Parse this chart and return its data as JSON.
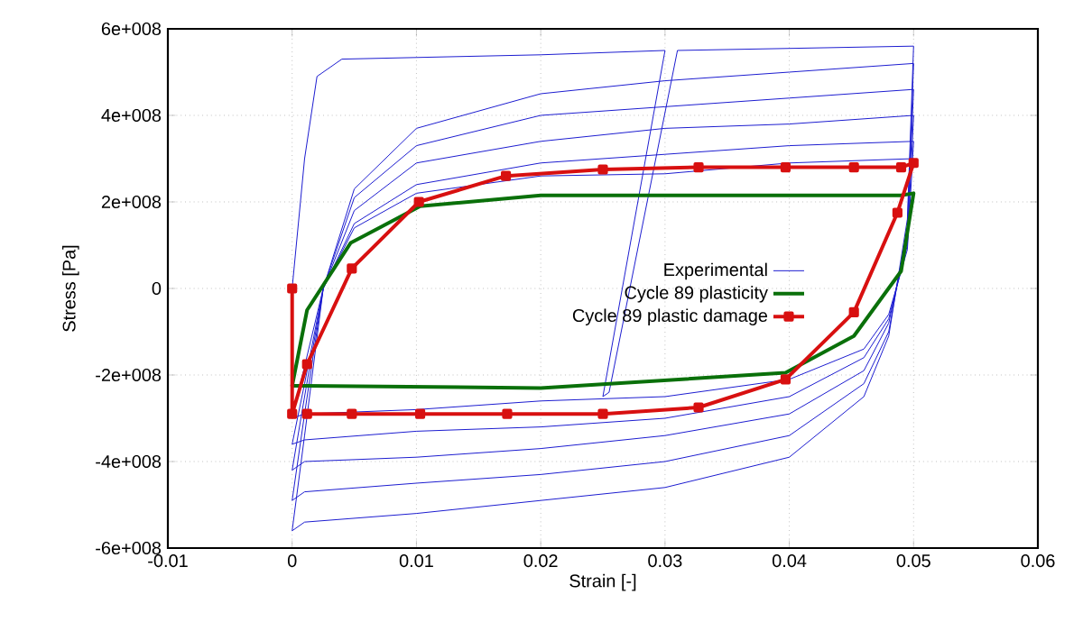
{
  "chart_data": {
    "type": "line",
    "xlabel": "Strain [-]",
    "ylabel": "Stress [Pa]",
    "xlim": [
      -0.01,
      0.06
    ],
    "xticks": [
      -0.01,
      0,
      0.01,
      0.02,
      0.03,
      0.04,
      0.05,
      0.06
    ],
    "ylim": [
      -600000000.0,
      600000000.0
    ],
    "yticks": [
      {
        "value": -600000000.0,
        "label": "-6e+008"
      },
      {
        "value": -400000000.0,
        "label": "-4e+008"
      },
      {
        "value": -200000000.0,
        "label": "-2e+008"
      },
      0,
      {
        "value": 200000000.0,
        "label": "2e+008"
      },
      {
        "value": 400000000.0,
        "label": "4e+008"
      },
      {
        "value": 600000000.0,
        "label": "6e+008"
      }
    ],
    "grid": true,
    "legend": "right",
    "series": [
      {
        "name": "Experimental",
        "color": "#1c1cd0",
        "marker": "none",
        "x": [
          0,
          0.001,
          0.002,
          0.004,
          0.02,
          0.03,
          0.025,
          0.0255,
          0.031,
          0.05,
          0.0495,
          0.048,
          0.046,
          0.04,
          0.03,
          0.02,
          0.01,
          0.001,
          0,
          0.001,
          0.0025,
          0.005,
          0.01,
          0.02,
          0.03,
          0.04,
          0.05,
          0.0495,
          0.048,
          0.046,
          0.04,
          0.03,
          0.02,
          0.01,
          0.001,
          0,
          0.001,
          0.0025,
          0.005,
          0.01,
          0.02,
          0.03,
          0.04,
          0.05,
          0.0495,
          0.048,
          0.046,
          0.04,
          0.03,
          0.02,
          0.01,
          0.001,
          0,
          0.001,
          0.0025,
          0.005,
          0.01,
          0.02,
          0.03,
          0.04,
          0.05,
          0.0495,
          0.048,
          0.046,
          0.04,
          0.03,
          0.02,
          0.01,
          0.001,
          0,
          0.001,
          0.0025,
          0.005,
          0.01,
          0.02,
          0.03,
          0.04,
          0.05,
          0.0495,
          0.048,
          0.046,
          0.04,
          0.03,
          0.02,
          0.01,
          0.001,
          0,
          0.001,
          0.0025,
          0.005,
          0.01,
          0.02,
          0.03,
          0.04,
          0.05
        ],
        "values": [
          0,
          300000000.0,
          490000000.0,
          530000000.0,
          540000000.0,
          550000000.0,
          -250000000.0,
          -240000000.0,
          550000000.0,
          560000000.0,
          160000000.0,
          -110000000.0,
          -250000000.0,
          -390000000.0,
          -460000000.0,
          -490000000.0,
          -520000000.0,
          -540000000.0,
          -560000000.0,
          -340000000.0,
          0,
          230000000.0,
          370000000.0,
          450000000.0,
          480000000.0,
          500000000.0,
          520000000.0,
          140000000.0,
          -100000000.0,
          -220000000.0,
          -340000000.0,
          -400000000.0,
          -430000000.0,
          -450000000.0,
          -470000000.0,
          -490000000.0,
          -290000000.0,
          0,
          210000000.0,
          330000000.0,
          400000000.0,
          420000000.0,
          440000000.0,
          460000000.0,
          120000000.0,
          -80000000.0,
          -190000000.0,
          -290000000.0,
          -340000000.0,
          -370000000.0,
          -390000000.0,
          -400000000.0,
          -420000000.0,
          -250000000.0,
          0,
          180000000.0,
          290000000.0,
          340000000.0,
          370000000.0,
          380000000.0,
          400000000.0,
          100000000.0,
          -70000000.0,
          -160000000.0,
          -250000000.0,
          -300000000.0,
          -320000000.0,
          -330000000.0,
          -350000000.0,
          -360000000.0,
          -220000000.0,
          0,
          150000000.0,
          240000000.0,
          290000000.0,
          310000000.0,
          330000000.0,
          340000000.0,
          90000000.0,
          -60000000.0,
          -140000000.0,
          -210000000.0,
          -250000000.0,
          -260000000.0,
          -280000000.0,
          -290000000.0,
          -300000000.0,
          -180000000.0,
          0,
          140000000.0,
          220000000.0,
          260000000.0,
          265000000.0,
          290000000.0,
          300000000.0
        ]
      },
      {
        "name": "Cycle 89 plasticity",
        "color": "#0a700a",
        "marker": "none",
        "x": [
          0,
          0.0012,
          0.0047,
          0.0103,
          0.02,
          0.049,
          0.05,
          0.049,
          0.0452,
          0.0397,
          0.02,
          0.001,
          0,
          0.0012
        ],
        "values": [
          -225000000.0,
          -50000000.0,
          105000000.0,
          190000000.0,
          215000000.0,
          215000000.0,
          220000000.0,
          40000000.0,
          -110000000.0,
          -195000000.0,
          -230000000.0,
          -225000000.0,
          -225000000.0,
          -50000000.0
        ]
      },
      {
        "name": "Cycle 89 plastic damage",
        "color": "#d81010",
        "marker": "square",
        "x": [
          0,
          0,
          0.0012,
          0.0048,
          0.0102,
          0.0172,
          0.025,
          0.0327,
          0.0397,
          0.0452,
          0.049,
          0.05,
          0.0487,
          0.0452,
          0.0397,
          0.0327,
          0.025,
          0.0173,
          0.0103,
          0.0048,
          0.0012
        ],
        "values": [
          0,
          -290000000.0,
          -175000000.0,
          46000000.0,
          200000000.0,
          260000000.0,
          275000000.0,
          280000000.0,
          280000000.0,
          280000000.0,
          280000000.0,
          290000000.0,
          175000000.0,
          -55000000.0,
          -210000000.0,
          -275000000.0,
          -290000000.0,
          -290000000.0,
          -290000000.0,
          -290000000.0,
          -290000000.0
        ]
      }
    ]
  }
}
